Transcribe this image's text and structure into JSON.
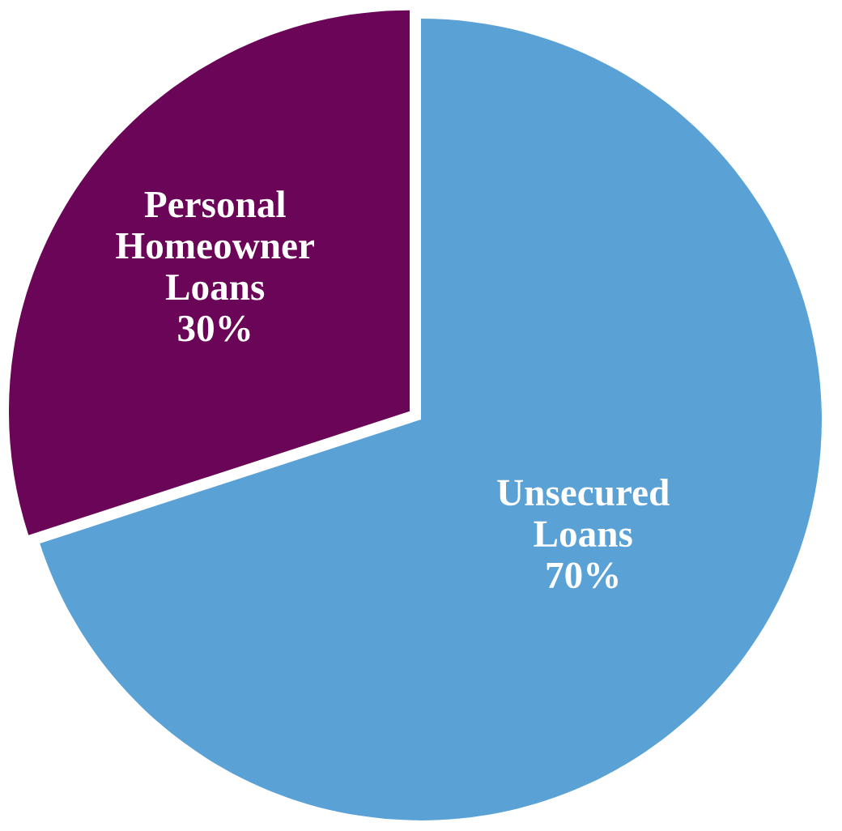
{
  "chart_data": {
    "type": "pie",
    "categories": [
      "Unsecured\nLoans",
      "Personal\nHomeowner\nLoans"
    ],
    "values": [
      70,
      30
    ],
    "value_labels": [
      "70%",
      "30%"
    ],
    "colors": [
      "#5aa2d6",
      "#6b0558"
    ],
    "legend": false
  }
}
